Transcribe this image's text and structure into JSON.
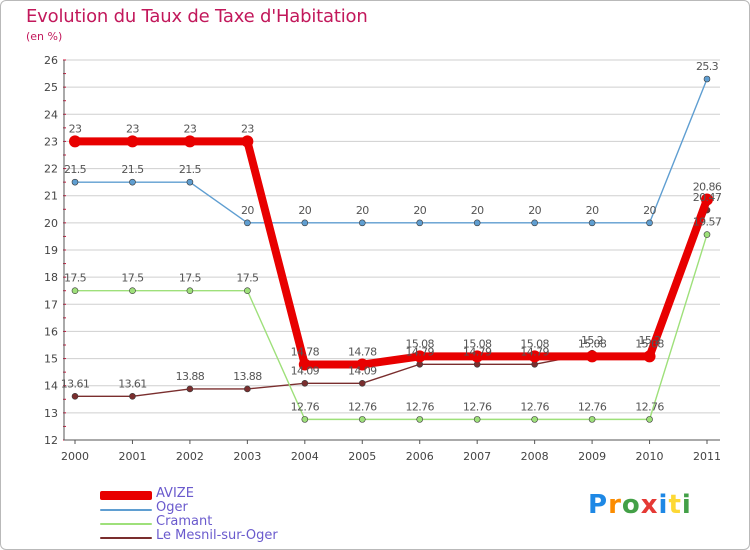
{
  "header": {
    "title": "Evolution du Taux de Taxe d'Habitation",
    "subtitle": "(en %)"
  },
  "logo": {
    "text": "Proxiti",
    "letter_colors": [
      "#1e88e5",
      "#fb8c00",
      "#43a047",
      "#e53935",
      "#1e88e5",
      "#fdd835",
      "#43a047"
    ]
  },
  "colors": {
    "title": "#c2185b",
    "axis": "#555555",
    "tick_marks": "#d0103a",
    "grid": "#cfcfcf"
  },
  "chart_data": {
    "type": "line",
    "x": [
      2000,
      2001,
      2002,
      2003,
      2004,
      2005,
      2006,
      2007,
      2008,
      2009,
      2010,
      2011
    ],
    "ylim": [
      12,
      26
    ],
    "yticks": [
      12,
      13,
      14,
      15,
      16,
      17,
      18,
      19,
      20,
      21,
      22,
      23,
      24,
      25,
      26
    ],
    "grid": "horizontal",
    "legend_position": "bottom-left",
    "series": [
      {
        "name": "AVIZE",
        "color": "#e80000",
        "values": [
          23,
          23,
          23,
          23,
          14.78,
          14.78,
          15.08,
          15.08,
          15.08,
          15.08,
          15.08,
          20.86
        ],
        "labels": [
          "23",
          "23",
          "23",
          "23",
          "14.78",
          "14.78",
          "15.08",
          "15.08",
          "15.08",
          "15.08",
          "15.08",
          "20.86"
        ]
      },
      {
        "name": "Oger",
        "color": "#5f9ed1",
        "values": [
          21.5,
          21.5,
          21.5,
          20,
          20,
          20,
          20,
          20,
          20,
          20,
          20,
          25.3
        ],
        "labels": [
          "21.5",
          "21.5",
          "21.5",
          "20",
          "20",
          "20",
          "20",
          "20",
          "20",
          "20",
          "20",
          "25.3"
        ]
      },
      {
        "name": "Cramant",
        "color": "#9ee07a",
        "values": [
          17.5,
          17.5,
          17.5,
          17.5,
          12.76,
          12.76,
          12.76,
          12.76,
          12.76,
          12.76,
          12.76,
          19.57
        ],
        "labels": [
          "17.5",
          "17.5",
          "17.5",
          "17.5",
          "12.76",
          "12.76",
          "12.76",
          "12.76",
          "12.76",
          "12.76",
          "12.76",
          "19.57"
        ]
      },
      {
        "name": "Le Mesnil-sur-Oger",
        "color": "#7a2e2e",
        "values": [
          13.61,
          13.61,
          13.88,
          13.88,
          14.09,
          14.09,
          14.79,
          14.79,
          14.79,
          15.2,
          15.2,
          20.47
        ],
        "labels": [
          "13.61",
          "13.61",
          "13.88",
          "13.88",
          "14.09",
          "14.09",
          "14.79",
          "14.79",
          "14.79",
          "15.2",
          "15.2",
          "20.47"
        ]
      }
    ]
  }
}
